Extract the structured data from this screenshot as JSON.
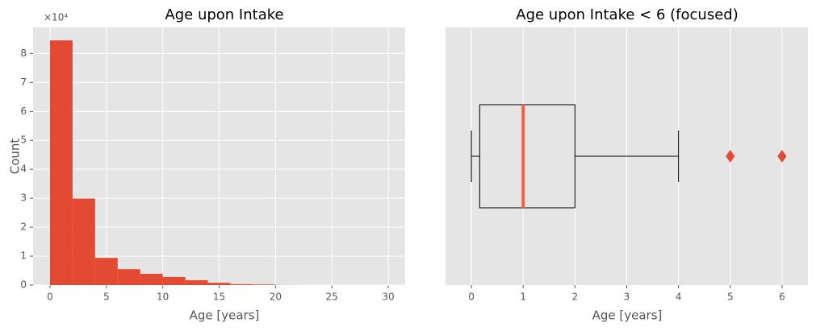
{
  "chart_data": [
    {
      "type": "histogram",
      "title": "Age upon Intake",
      "x_label": "Age [years]",
      "y_label": "Count",
      "y_offset_text": "×10⁴",
      "bins": [
        0,
        2,
        4,
        6,
        8,
        10,
        12,
        14,
        16,
        18,
        20,
        22,
        24,
        26,
        28,
        30
      ],
      "values": [
        84500,
        29900,
        9400,
        5500,
        3900,
        2800,
        1700,
        800,
        300,
        200,
        30,
        10,
        5,
        0,
        2
      ],
      "color": "#e24a33",
      "xlim": [
        -1.5,
        31.5
      ],
      "xticks": [
        0,
        5,
        10,
        15,
        20,
        25,
        30
      ],
      "ylim": [
        0,
        89000
      ],
      "yticks": [
        {
          "value": 0,
          "label": "0"
        },
        {
          "value": 10000,
          "label": "1"
        },
        {
          "value": 20000,
          "label": "2"
        },
        {
          "value": 30000,
          "label": "3"
        },
        {
          "value": 40000,
          "label": "4"
        },
        {
          "value": 50000,
          "label": "5"
        },
        {
          "value": 60000,
          "label": "6"
        },
        {
          "value": 70000,
          "label": "7"
        },
        {
          "value": 80000,
          "label": "8"
        }
      ],
      "grid": true
    },
    {
      "type": "box",
      "title": "Age upon Intake < 6 (focused)",
      "x_label": "Age [years]",
      "whislo": 0,
      "q1": 0.16,
      "med": 1,
      "q3": 2,
      "whishi": 4,
      "fliers": [
        5,
        6
      ],
      "median_color": "#f0614a",
      "flier_color": "#e24a33",
      "xlim": [
        -0.5,
        6.5
      ],
      "xticks": [
        0,
        1,
        2,
        3,
        4,
        5,
        6
      ],
      "grid": true
    }
  ]
}
